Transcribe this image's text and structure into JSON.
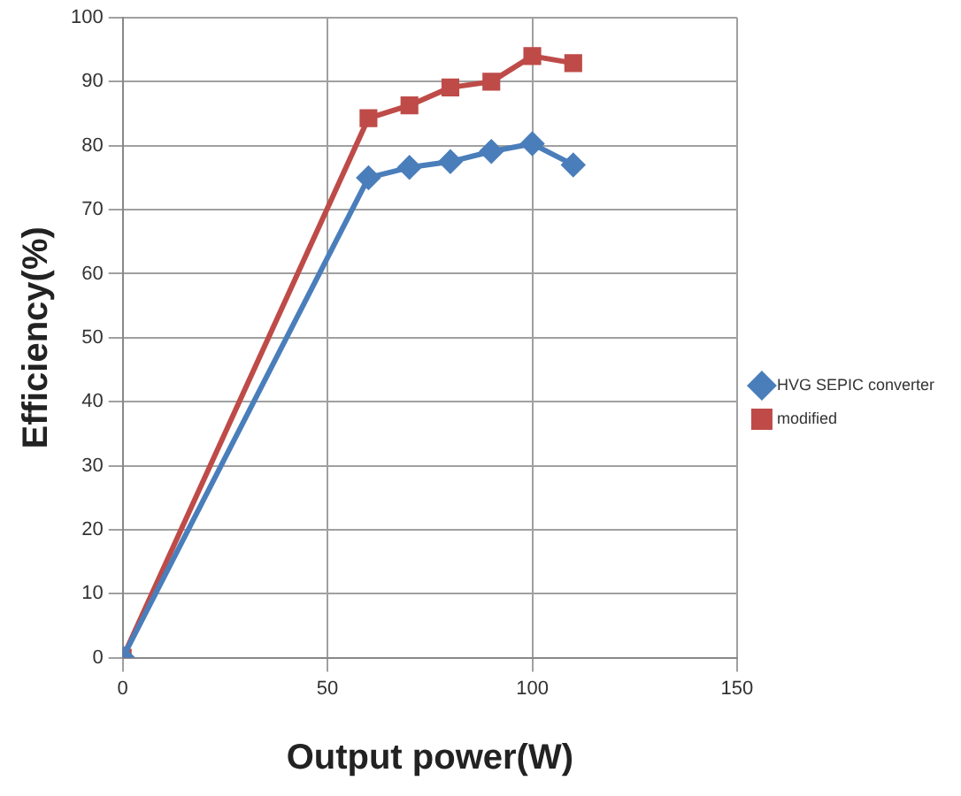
{
  "chart_data": {
    "type": "line",
    "xlabel": "Output power(W)",
    "ylabel": "Efficiency(%)",
    "x": [
      0,
      60,
      70,
      80,
      90,
      100,
      110
    ],
    "series": [
      {
        "name": "HVG SEPIC converter",
        "color": "#4a7ebb",
        "marker": "diamond",
        "values": [
          0,
          75,
          76.6,
          77.5,
          79.1,
          80.3,
          77
        ]
      },
      {
        "name": "modified",
        "color": "#be4b48",
        "marker": "square",
        "values": [
          0,
          84.3,
          86.3,
          89.1,
          90,
          94,
          92.9
        ]
      }
    ],
    "xlim": [
      0,
      150
    ],
    "xticks": [
      0,
      50,
      100,
      150
    ],
    "ylim": [
      0,
      100
    ],
    "yticks": [
      0,
      10,
      20,
      30,
      40,
      50,
      60,
      70,
      80,
      90,
      100
    ],
    "grid": true,
    "legend": "right"
  }
}
